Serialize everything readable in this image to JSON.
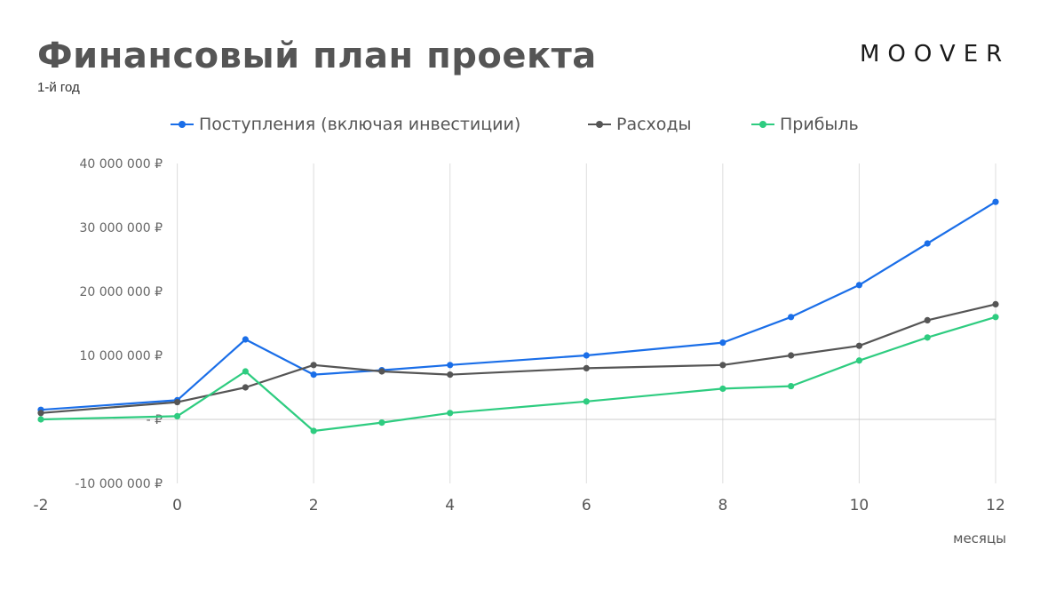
{
  "header": {
    "title": "Финансовый план проекта",
    "subtitle": "1-й год",
    "logo": "MOOVER"
  },
  "colors": {
    "income": "#1a6ee8",
    "expenses": "#555555",
    "profit": "#2ecc80",
    "grid": "#dddddd"
  },
  "chart_data": {
    "type": "line",
    "title": "Финансовый план проекта",
    "subtitle": "1-й год",
    "xlabel": "месяцы",
    "ylabel": "",
    "xlim": [
      -2,
      12
    ],
    "ylim": [
      -10000000,
      40000000
    ],
    "x_ticks": [
      -2,
      0,
      2,
      4,
      6,
      8,
      10,
      12
    ],
    "y_ticks": [
      40000000,
      30000000,
      20000000,
      10000000,
      0,
      -10000000
    ],
    "y_tick_labels": [
      "40 000 000 ₽",
      "30 000 000 ₽",
      "20 000 000 ₽",
      "10 000 000 ₽",
      "- ₽",
      "-10 000 000 ₽"
    ],
    "grid": "vertical",
    "legend_position": "top",
    "x": [
      -2,
      0,
      1,
      2,
      3,
      4,
      6,
      8,
      9,
      10,
      11,
      12
    ],
    "series": [
      {
        "name": "Поступления (включая инвестиции)",
        "color": "#1a6ee8",
        "values": [
          1500000,
          3000000,
          12500000,
          7000000,
          7700000,
          8500000,
          10000000,
          12000000,
          16000000,
          21000000,
          27500000,
          34000000
        ]
      },
      {
        "name": "Расходы",
        "color": "#555555",
        "values": [
          1000000,
          2700000,
          5000000,
          8500000,
          7500000,
          7000000,
          8000000,
          8500000,
          10000000,
          11500000,
          15500000,
          18000000
        ]
      },
      {
        "name": "Прибыль",
        "color": "#2ecc80",
        "values": [
          0,
          500000,
          7500000,
          -1800000,
          -500000,
          1000000,
          2800000,
          4800000,
          5200000,
          9200000,
          12800000,
          16000000
        ]
      }
    ]
  }
}
